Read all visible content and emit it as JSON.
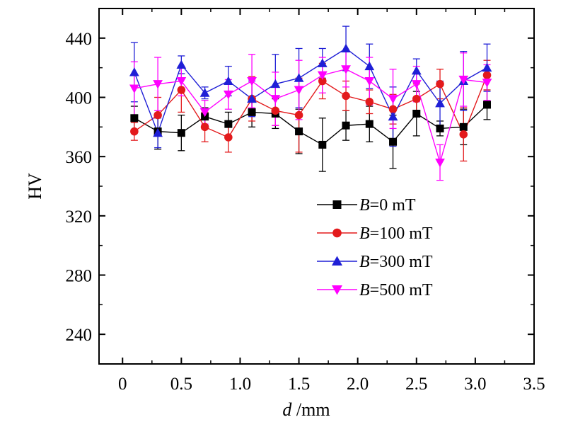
{
  "chart_data": {
    "type": "line",
    "xlabel_italic": "d",
    "xlabel_unit": " /mm",
    "ylabel": "HV",
    "xlim": [
      -0.2,
      3.5
    ],
    "ylim": [
      220,
      460
    ],
    "xticks": [
      0,
      0.5,
      1.0,
      1.5,
      2.0,
      2.5,
      3.0,
      3.5
    ],
    "xtick_labels": [
      "0",
      "0.5",
      "1.0",
      "1.5",
      "2.0",
      "2.5",
      "3.0",
      "3.5"
    ],
    "yticks": [
      240,
      280,
      320,
      360,
      400,
      440
    ],
    "ytick_labels": [
      "240",
      "280",
      "320",
      "360",
      "400",
      "440"
    ],
    "grid": false,
    "legend_position": "center-right",
    "x": [
      0.1,
      0.3,
      0.5,
      0.7,
      0.9,
      1.1,
      1.3,
      1.5,
      1.7,
      1.9,
      2.1,
      2.3,
      2.5,
      2.7,
      2.9,
      3.1
    ],
    "series": [
      {
        "name_italic": "B",
        "name_rest": "=0 mT",
        "color": "#000000",
        "marker": "square",
        "values": [
          386,
          377,
          376,
          387,
          382,
          390,
          389,
          377,
          368,
          381,
          382,
          370,
          389,
          379,
          380,
          395
        ],
        "errors": [
          8,
          12,
          12,
          6,
          8,
          10,
          10,
          15,
          18,
          10,
          12,
          18,
          15,
          5,
          12,
          10
        ]
      },
      {
        "name_italic": "B",
        "name_rest": "=100 mT",
        "color": "#e31a1c",
        "marker": "circle",
        "values": [
          377,
          388,
          405,
          380,
          373,
          399,
          391,
          388,
          411,
          401,
          397,
          392,
          399,
          409,
          375,
          415
        ],
        "errors": [
          6,
          12,
          15,
          10,
          10,
          15,
          10,
          25,
          12,
          10,
          8,
          10,
          10,
          10,
          18,
          10
        ]
      },
      {
        "name_italic": "B",
        "name_rest": "=300 mT",
        "color": "#1f1fd6",
        "marker": "triangle-up",
        "values": [
          417,
          376,
          422,
          403,
          411,
          399,
          409,
          413,
          423,
          433,
          421,
          387,
          418,
          396,
          411,
          420
        ],
        "errors": [
          20,
          10,
          6,
          4,
          10,
          12,
          20,
          20,
          10,
          15,
          15,
          20,
          8,
          15,
          20,
          16
        ]
      },
      {
        "name_italic": "B",
        "name_rest": "=500 mT",
        "color": "#ff00ff",
        "marker": "triangle-down",
        "values": [
          406,
          409,
          411,
          390,
          402,
          411,
          399,
          405,
          415,
          419,
          411,
          399,
          409,
          356,
          412,
          410
        ],
        "errors": [
          18,
          18,
          10,
          8,
          10,
          18,
          18,
          20,
          12,
          12,
          16,
          20,
          12,
          12,
          18,
          12
        ]
      }
    ]
  }
}
